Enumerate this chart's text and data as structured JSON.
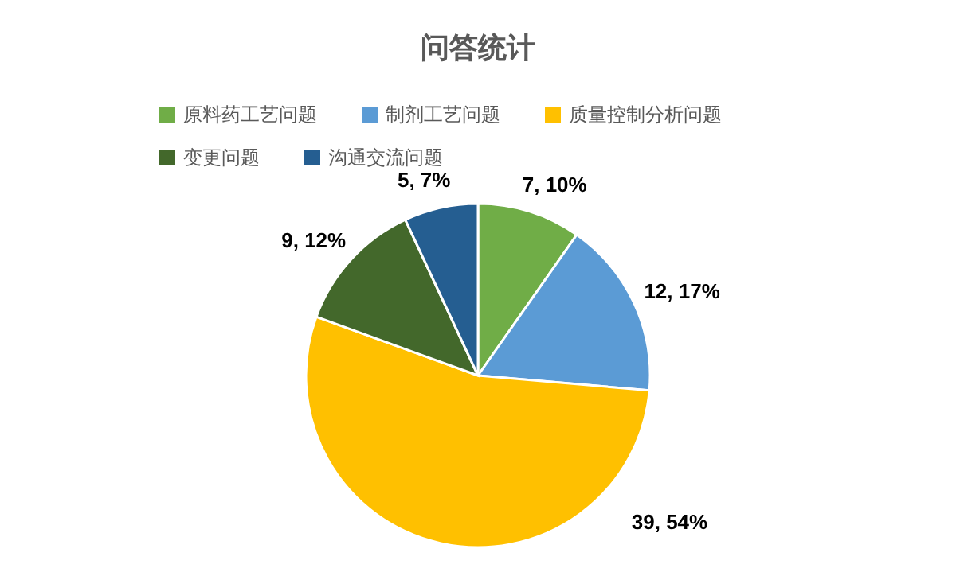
{
  "chart_data": {
    "type": "pie",
    "title": "问答统计",
    "categories": [
      "原料药工艺问题",
      "制剂工艺问题",
      "质量控制分析问题",
      "变更问题",
      "沟通交流问题"
    ],
    "values": [
      7,
      12,
      39,
      9,
      5
    ],
    "colors": [
      "#70ad47",
      "#5b9bd5",
      "#ffc000",
      "#43682b",
      "#255e91"
    ],
    "value_labels": [
      "7, 10%",
      "12, 17%",
      "39, 54%",
      "9, 12%",
      "5, 7%"
    ],
    "legend": "top"
  }
}
